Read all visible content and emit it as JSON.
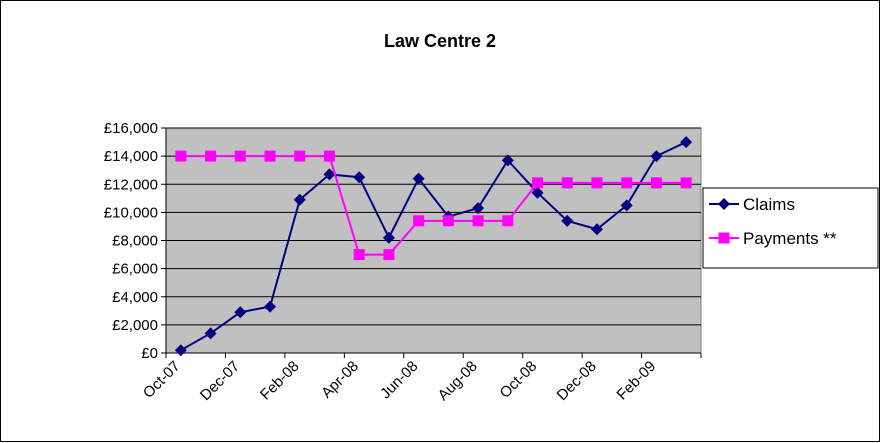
{
  "chart_data": {
    "type": "line",
    "title": "Law Centre 2",
    "categories": [
      "Oct-07",
      null,
      "Dec-07",
      null,
      "Feb-08",
      null,
      "Apr-08",
      null,
      "Jun-08",
      null,
      "Aug-08",
      null,
      "Oct-08",
      null,
      "Dec-08",
      null,
      "Feb-09",
      null
    ],
    "series": [
      {
        "name": "Claims",
        "color": "#000080",
        "marker": "diamond",
        "values": [
          200,
          1400,
          2900,
          3300,
          10900,
          12700,
          12500,
          8200,
          12400,
          9700,
          10300,
          13700,
          11400,
          9400,
          8800,
          10500,
          14000,
          15000
        ]
      },
      {
        "name": "Payments **",
        "color": "#ff00ff",
        "marker": "square",
        "values": [
          14000,
          14000,
          14000,
          14000,
          14000,
          14000,
          7000,
          7000,
          9400,
          9400,
          9400,
          9400,
          12100,
          12100,
          12100,
          12100,
          12100,
          12100
        ]
      }
    ],
    "ylim": [
      0,
      16000
    ],
    "yticks": [
      {
        "value": 0,
        "label": "£0"
      },
      {
        "value": 2000,
        "label": "£2,000"
      },
      {
        "value": 4000,
        "label": "£4,000"
      },
      {
        "value": 6000,
        "label": "£6,000"
      },
      {
        "value": 8000,
        "label": "£8,000"
      },
      {
        "value": 10000,
        "label": "£10,000"
      },
      {
        "value": 12000,
        "label": "£12,000"
      },
      {
        "value": 14000,
        "label": "£14,000"
      },
      {
        "value": 16000,
        "label": "£16,000"
      }
    ],
    "grid": true,
    "legend": "right",
    "plot_background": "#c0c0c0"
  }
}
